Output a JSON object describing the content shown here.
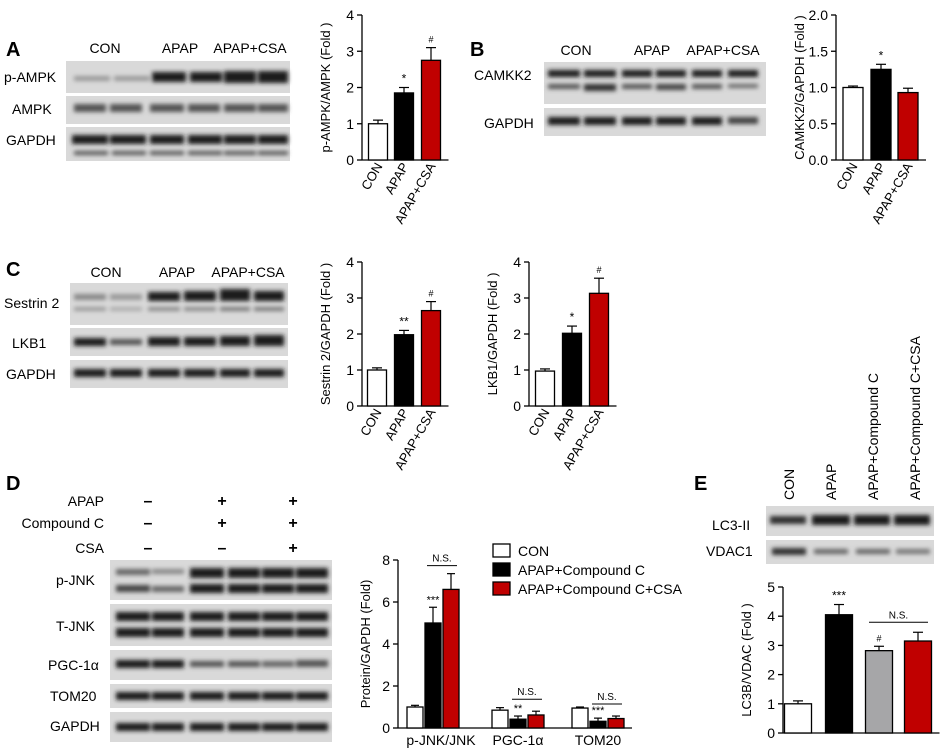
{
  "panels": {
    "A": {
      "letter": "A",
      "groups": [
        "CON",
        "APAP",
        "APAP+CSA"
      ],
      "rows": [
        "p-AMPK",
        "AMPK",
        "GAPDH"
      ]
    },
    "B": {
      "letter": "B",
      "groups": [
        "CON",
        "APAP",
        "APAP+CSA"
      ],
      "rows": [
        "CAMKK2",
        "GAPDH"
      ]
    },
    "C": {
      "letter": "C",
      "groups": [
        "CON",
        "APAP",
        "APAP+CSA"
      ],
      "rows": [
        "Sestrin 2",
        "LKB1",
        "GAPDH"
      ]
    },
    "D": {
      "letter": "D",
      "treatments": [
        {
          "label": "APAP",
          "signs": [
            "–",
            "+",
            "+"
          ]
        },
        {
          "label": "Compound C",
          "signs": [
            "–",
            "+",
            "+"
          ]
        },
        {
          "label": "CSA",
          "signs": [
            "–",
            "–",
            "+"
          ]
        }
      ],
      "rows": [
        "p-JNK",
        "T-JNK",
        "PGC-1α",
        "TOM20",
        "GAPDH"
      ]
    },
    "E": {
      "letter": "E",
      "groups": [
        "CON",
        "APAP",
        "APAP+Compound C",
        "APAP+Compound C+CSA"
      ],
      "rows": [
        "LC3-II",
        "VDAC1"
      ]
    }
  },
  "colors": {
    "con": "#ffffff",
    "apap": "#000000",
    "csa": "#c00000",
    "compound_c": "#a6a6a8"
  },
  "chart_data": [
    {
      "id": "A",
      "type": "bar",
      "categories": [
        "CON",
        "APAP",
        "APAP+CSA"
      ],
      "values": [
        1.0,
        1.85,
        2.75
      ],
      "errors": [
        0.1,
        0.15,
        0.35
      ],
      "marks": [
        "",
        "*",
        "#"
      ],
      "ylabel": "p-AMPK/AMPK (Fold )",
      "ylim": [
        0,
        4
      ],
      "yticks": [
        "0",
        "1",
        "2",
        "3",
        "4"
      ]
    },
    {
      "id": "B",
      "type": "bar",
      "categories": [
        "CON",
        "APAP",
        "APAP+CSA"
      ],
      "values": [
        1.0,
        1.25,
        0.93
      ],
      "errors": [
        0.02,
        0.07,
        0.06
      ],
      "marks": [
        "",
        "*",
        ""
      ],
      "ylabel": "CAMKK2/GAPDH (Fold )",
      "ylim": [
        0,
        2.0
      ],
      "yticks": [
        "0.0",
        "0.5",
        "1.0",
        "1.5",
        "2.0"
      ]
    },
    {
      "id": "C1",
      "type": "bar",
      "categories": [
        "CON",
        "APAP",
        "APAP+CSA"
      ],
      "values": [
        1.0,
        1.98,
        2.65
      ],
      "errors": [
        0.06,
        0.12,
        0.25
      ],
      "marks": [
        "",
        "**",
        "#"
      ],
      "ylabel": "Sestrin 2/GAPDH (Fold )",
      "ylim": [
        0,
        4
      ],
      "yticks": [
        "0",
        "1",
        "2",
        "3",
        "4"
      ]
    },
    {
      "id": "C2",
      "type": "bar",
      "categories": [
        "CON",
        "APAP",
        "APAP+CSA"
      ],
      "values": [
        0.97,
        2.02,
        3.13
      ],
      "errors": [
        0.06,
        0.2,
        0.42
      ],
      "marks": [
        "",
        "*",
        "#"
      ],
      "ylabel": "LKB1/GAPDH (Fold )",
      "ylim": [
        0,
        4
      ],
      "yticks": [
        "0",
        "1",
        "2",
        "3",
        "4"
      ]
    },
    {
      "id": "D",
      "type": "bar",
      "categories": [
        "p-JNK/JNK",
        "PGC-1α",
        "TOM20"
      ],
      "series": [
        {
          "name": "CON",
          "values": [
            1.0,
            0.85,
            0.95
          ],
          "errors": [
            0.08,
            0.12,
            0.05
          ],
          "marks": [
            "",
            "",
            ""
          ]
        },
        {
          "name": "APAP+Compound C",
          "values": [
            5.0,
            0.42,
            0.32
          ],
          "errors": [
            0.75,
            0.15,
            0.15
          ],
          "marks": [
            "***",
            "**",
            "***"
          ]
        },
        {
          "name": "APAP+Compound C+CSA",
          "values": [
            6.6,
            0.62,
            0.45
          ],
          "errors": [
            0.75,
            0.18,
            0.12
          ],
          "marks": [
            "",
            "",
            ""
          ]
        }
      ],
      "ns_label": "N.S.",
      "ylabel": "Protein/GAPDH (Fold)",
      "ylim": [
        0,
        8
      ],
      "yticks": [
        "0",
        "2",
        "4",
        "6",
        "8"
      ]
    },
    {
      "id": "E",
      "type": "bar",
      "categories": [
        "CON",
        "APAP",
        "APAP+Compound C",
        "APAP+Compound C+CSA"
      ],
      "values": [
        1.0,
        4.05,
        2.82,
        3.15
      ],
      "errors": [
        0.1,
        0.35,
        0.15,
        0.3
      ],
      "marks": [
        "",
        "***",
        "#",
        ""
      ],
      "ns_label": "N.S.",
      "ylabel": "LC3B/VDAC (Fold )",
      "ylim": [
        0,
        5
      ],
      "yticks": [
        "0",
        "1",
        "2",
        "3",
        "4",
        "5"
      ]
    }
  ]
}
